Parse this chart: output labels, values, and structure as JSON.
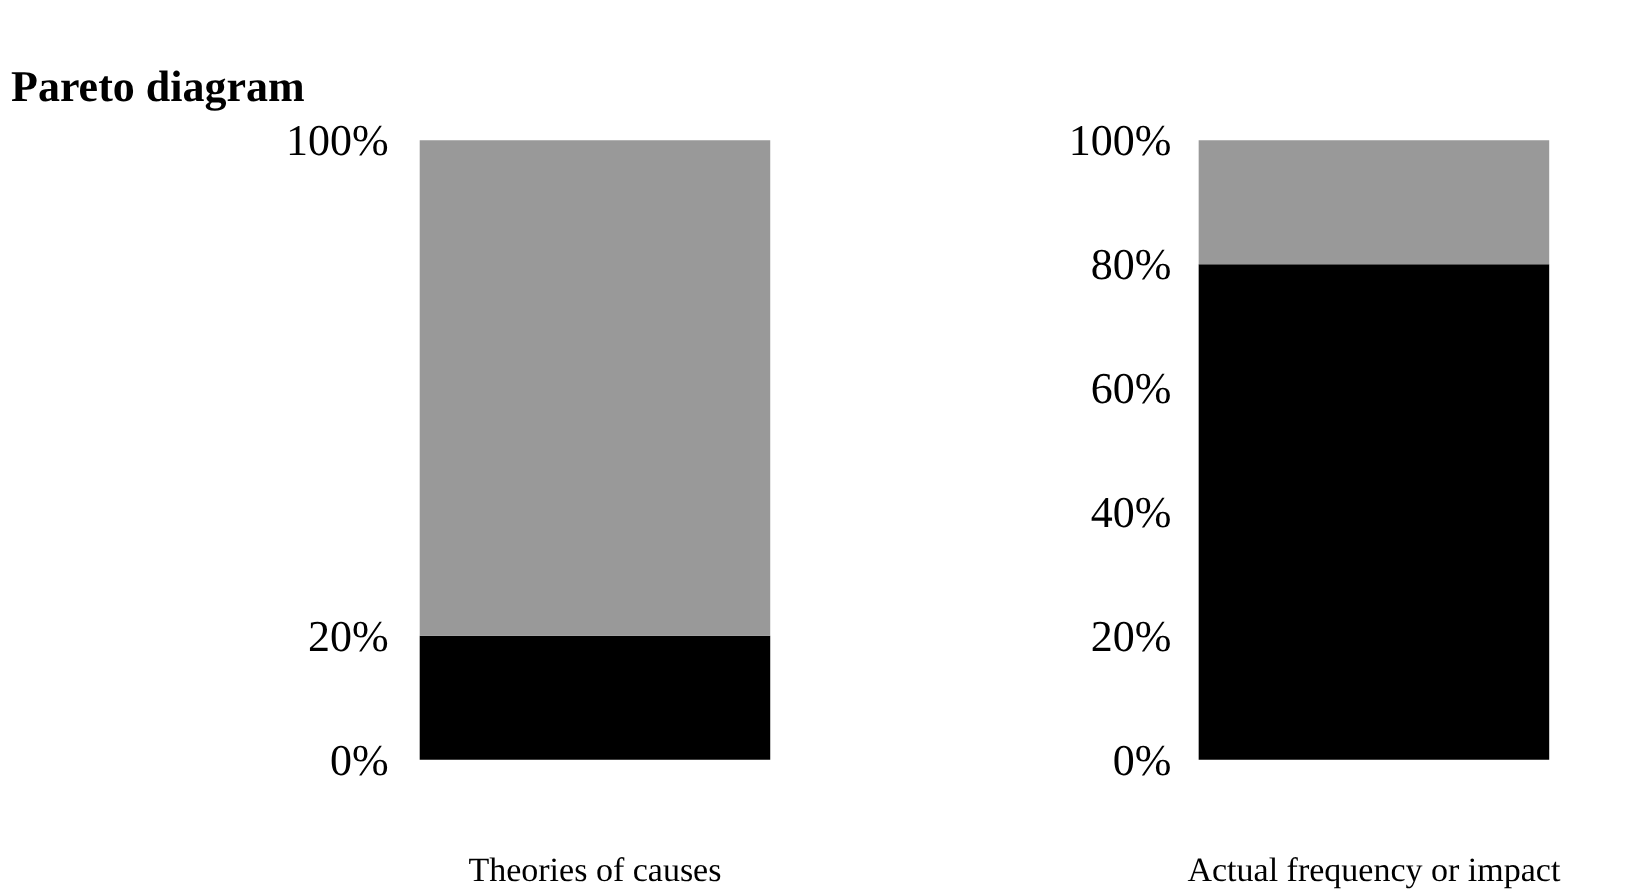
{
  "chart_data": {
    "type": "bar",
    "title": "Pareto diagram",
    "categories": [
      "Theories of causes",
      "Actual frequency or impact"
    ],
    "stacked": true,
    "series": [
      {
        "color": "#000000",
        "values": [
          20,
          80
        ]
      },
      {
        "color": "#999999",
        "values": [
          80,
          20
        ]
      }
    ],
    "ylim": [
      0,
      100
    ],
    "yticks": [
      {
        "value": 0,
        "label": "0%"
      },
      {
        "value": 20,
        "label": "20%"
      },
      {
        "value": 100,
        "label": "100%"
      }
    ],
    "y2lim": [
      0,
      100
    ],
    "y2ticks": [
      {
        "value": 0,
        "label": "0%"
      },
      {
        "value": 20,
        "label": "20%"
      },
      {
        "value": 40,
        "label": "40%"
      },
      {
        "value": 60,
        "label": "60%"
      },
      {
        "value": 80,
        "label": "80%"
      },
      {
        "value": 100,
        "label": "100%"
      }
    ],
    "grid": false
  }
}
